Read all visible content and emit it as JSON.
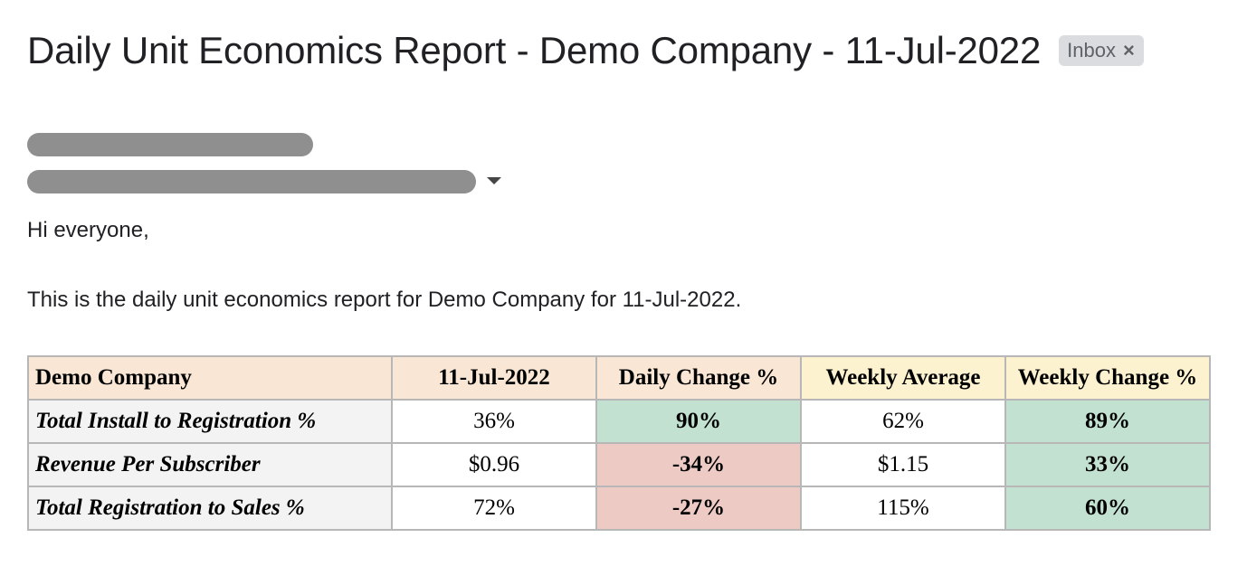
{
  "email": {
    "subject": "Daily Unit Economics Report - Demo Company - 11-Jul-2022",
    "label_chip": "Inbox",
    "label_remove": "×",
    "greeting": "Hi everyone,",
    "intro": "This is the daily unit economics report for Demo Company for 11-Jul-2022."
  },
  "report_table": {
    "headers": [
      "Demo Company",
      "11-Jul-2022",
      "Daily Change %",
      "Weekly Average",
      "Weekly Change %"
    ],
    "rows": [
      {
        "metric": "Total Install to Registration %",
        "value": "36%",
        "daily_change": "90%",
        "weekly_avg": "62%",
        "weekly_change": "89%"
      },
      {
        "metric": "Revenue Per Subscriber",
        "value": "$0.96",
        "daily_change": "-34%",
        "weekly_avg": "$1.15",
        "weekly_change": "33%"
      },
      {
        "metric": "Total Registration to Sales %",
        "value": "72%",
        "daily_change": "-27%",
        "weekly_avg": "115%",
        "weekly_change": "60%"
      }
    ]
  },
  "colors": {
    "positive": "#c2e1d0",
    "negative": "#eecac4",
    "header_peach": "#f9e6d4",
    "header_yellow": "#fdf2cf",
    "redaction": "#8f8f8f"
  },
  "icons": {
    "details": "chevron-down-icon",
    "remove_label": "close-icon"
  }
}
